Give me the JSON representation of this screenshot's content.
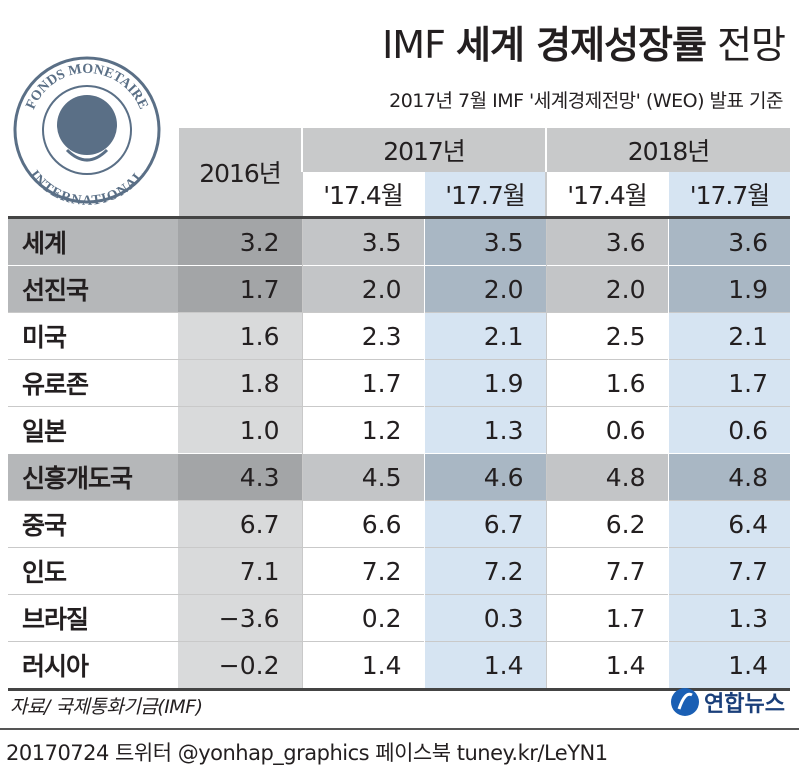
{
  "header": {
    "title_prefix": "IMF",
    "title_bold": "세계 경제성장률",
    "title_suffix": "전망",
    "subtitle": "2017년 7월 IMF '세계경제전망' (WEO) 발표 기준"
  },
  "logo": {
    "top": "FONDS MONETAIRE",
    "bottom": "INTERNATIONAL"
  },
  "table": {
    "years": [
      "2016년",
      "2017년",
      "2018년"
    ],
    "editions": [
      "'17.4월",
      "'17.7월",
      "'17.4월",
      "'17.7월"
    ],
    "rows": [
      [
        "세계",
        "3.2",
        "3.5",
        "3.5",
        "3.6",
        "3.6"
      ],
      [
        "선진국",
        "1.7",
        "2.0",
        "2.0",
        "2.0",
        "1.9"
      ],
      [
        "미국",
        "1.6",
        "2.3",
        "2.1",
        "2.5",
        "2.1"
      ],
      [
        "유로존",
        "1.8",
        "1.7",
        "1.9",
        "1.6",
        "1.7"
      ],
      [
        "일본",
        "1.0",
        "1.2",
        "1.3",
        "0.6",
        "0.6"
      ],
      [
        "신흥개도국",
        "4.3",
        "4.5",
        "4.6",
        "4.8",
        "4.8"
      ],
      [
        "중국",
        "6.7",
        "6.6",
        "6.7",
        "6.2",
        "6.4"
      ],
      [
        "인도",
        "7.1",
        "7.2",
        "7.2",
        "7.7",
        "7.7"
      ],
      [
        "브라질",
        "−3.6",
        "0.2",
        "0.3",
        "1.7",
        "1.3"
      ],
      [
        "러시아",
        "−0.2",
        "1.4",
        "1.4",
        "1.4",
        "1.4"
      ]
    ]
  },
  "source": "자료/ 국제통화기금(IMF)",
  "brand": "연합뉴스",
  "footer": "20170724 트위터 @yonhap_graphics 페이스북 tuney.kr/LeYN1"
}
